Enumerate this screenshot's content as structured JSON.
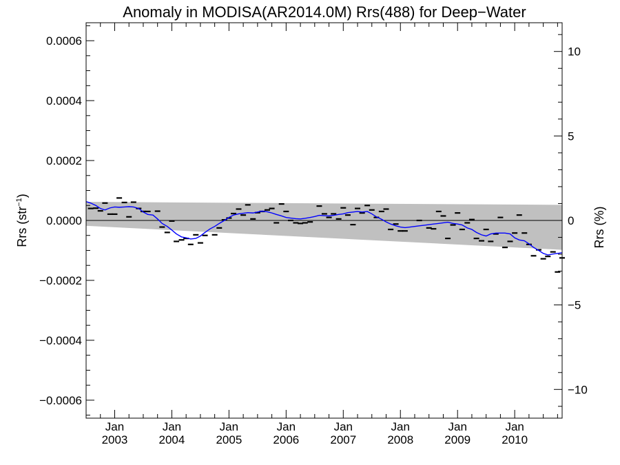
{
  "chart_data": {
    "type": "line",
    "title": "Anomaly in MODISA(AR2014.0M) Rrs(488) for Deep−Water",
    "ylabel_left_main": "Rrs (str",
    "ylabel_left_sup": "−1",
    "ylabel_left_close": ")",
    "ylabel_right": "Rrs (%)",
    "xlim": [
      2002.5,
      2010.83
    ],
    "ylim": [
      -0.00066,
      0.00066
    ],
    "ylim_right": [
      -11.7,
      11.7
    ],
    "grid": false,
    "y_ticks_left": [
      {
        "v": 0.0006,
        "label": "0.0006"
      },
      {
        "v": 0.0004,
        "label": "0.0004"
      },
      {
        "v": 0.0002,
        "label": "0.0002"
      },
      {
        "v": 0.0,
        "label": "0.0000"
      },
      {
        "v": -0.0002,
        "label": "−0.0002"
      },
      {
        "v": -0.0004,
        "label": "−0.0004"
      },
      {
        "v": -0.0006,
        "label": "−0.0006"
      }
    ],
    "y_ticks_right": [
      {
        "v": 10,
        "label": "10"
      },
      {
        "v": 5,
        "label": "5"
      },
      {
        "v": 0,
        "label": "0"
      },
      {
        "v": -5,
        "label": "−5"
      },
      {
        "v": -10,
        "label": "−10"
      }
    ],
    "x_ticks": [
      {
        "x": 2003.0,
        "month": "Jan",
        "year": "2003"
      },
      {
        "x": 2004.0,
        "month": "Jan",
        "year": "2004"
      },
      {
        "x": 2005.0,
        "month": "Jan",
        "year": "2005"
      },
      {
        "x": 2006.0,
        "month": "Jan",
        "year": "2006"
      },
      {
        "x": 2007.0,
        "month": "Jan",
        "year": "2007"
      },
      {
        "x": 2008.0,
        "month": "Jan",
        "year": "2008"
      },
      {
        "x": 2009.0,
        "month": "Jan",
        "year": "2009"
      },
      {
        "x": 2010.0,
        "month": "Jan",
        "year": "2010"
      }
    ],
    "reference_line_y": 0,
    "uncertainty_band": {
      "upper": [
        [
          2002.5,
          6.2e-05
        ],
        [
          2010.83,
          5.2e-05
        ]
      ],
      "lower": [
        [
          2002.5,
          -1.8e-05
        ],
        [
          2010.83,
          -9.8e-05
        ]
      ]
    },
    "monthly_anomalies": [
      [
        2002.58,
        4e-05
      ],
      [
        2002.67,
        4.1e-05
      ],
      [
        2002.75,
        3.2e-05
      ],
      [
        2002.83,
        5.8e-05
      ],
      [
        2002.92,
        2.1e-05
      ],
      [
        2003.0,
        2.1e-05
      ],
      [
        2003.08,
        7.5e-05
      ],
      [
        2003.17,
        6e-05
      ],
      [
        2003.25,
        1.2e-05
      ],
      [
        2003.33,
        6.1e-05
      ],
      [
        2003.42,
        4e-05
      ],
      [
        2003.5,
        3e-05
      ],
      [
        2003.58,
        3e-05
      ],
      [
        2003.75,
        3.1e-05
      ],
      [
        2003.83,
        -2.2e-05
      ],
      [
        2003.92,
        -4e-05
      ],
      [
        2004.0,
        -2e-06
      ],
      [
        2004.08,
        -7e-05
      ],
      [
        2004.17,
        -6.5e-05
      ],
      [
        2004.25,
        -6e-05
      ],
      [
        2004.33,
        -8e-05
      ],
      [
        2004.42,
        -4.8e-05
      ],
      [
        2004.5,
        -7.5e-05
      ],
      [
        2004.58,
        -5e-05
      ],
      [
        2004.75,
        -4.8e-05
      ],
      [
        2004.83,
        -2.5e-05
      ],
      [
        2004.92,
        2e-06
      ],
      [
        2005.0,
        8e-06
      ],
      [
        2005.08,
        2.3e-05
      ],
      [
        2005.17,
        3.8e-05
      ],
      [
        2005.25,
        1.8e-05
      ],
      [
        2005.33,
        5.2e-05
      ],
      [
        2005.42,
        5e-06
      ],
      [
        2005.5,
        2.6e-05
      ],
      [
        2005.58,
        3e-05
      ],
      [
        2005.67,
        3.5e-05
      ],
      [
        2005.75,
        4e-05
      ],
      [
        2005.83,
        -8e-06
      ],
      [
        2005.92,
        5.5e-05
      ],
      [
        2006.0,
        3e-05
      ],
      [
        2006.08,
        0.0
      ],
      [
        2006.17,
        -8e-06
      ],
      [
        2006.25,
        -1e-05
      ],
      [
        2006.33,
        -8e-06
      ],
      [
        2006.42,
        -5e-06
      ],
      [
        2006.58,
        4.8e-05
      ],
      [
        2006.67,
        2.2e-05
      ],
      [
        2006.75,
        1e-05
      ],
      [
        2006.83,
        2.2e-05
      ],
      [
        2006.92,
        5e-06
      ],
      [
        2007.0,
        4.2e-05
      ],
      [
        2007.08,
        1.8e-05
      ],
      [
        2007.17,
        -1.4e-05
      ],
      [
        2007.25,
        4e-05
      ],
      [
        2007.33,
        2.5e-05
      ],
      [
        2007.42,
        5e-05
      ],
      [
        2007.5,
        3.5e-05
      ],
      [
        2007.58,
        1e-05
      ],
      [
        2007.67,
        3e-05
      ],
      [
        2007.75,
        3.8e-05
      ],
      [
        2007.83,
        -3e-05
      ],
      [
        2007.92,
        -1.2e-05
      ],
      [
        2008.0,
        -3.5e-05
      ],
      [
        2008.08,
        -3.5e-05
      ],
      [
        2008.33,
        0.0
      ],
      [
        2008.5,
        -2.5e-05
      ],
      [
        2008.58,
        -2.8e-05
      ],
      [
        2008.67,
        3e-05
      ],
      [
        2008.75,
        1.5e-05
      ],
      [
        2008.83,
        -6e-05
      ],
      [
        2008.92,
        -1.5e-05
      ],
      [
        2009.0,
        2.5e-05
      ],
      [
        2009.08,
        -3e-05
      ],
      [
        2009.17,
        -8e-06
      ],
      [
        2009.25,
        3e-06
      ],
      [
        2009.33,
        -6e-05
      ],
      [
        2009.42,
        -6.8e-05
      ],
      [
        2009.5,
        -3e-05
      ],
      [
        2009.58,
        -7e-05
      ],
      [
        2009.67,
        -4.5e-05
      ],
      [
        2009.75,
        1e-05
      ],
      [
        2009.83,
        -9e-05
      ],
      [
        2009.92,
        -7e-05
      ],
      [
        2010.0,
        -4.2e-05
      ],
      [
        2010.08,
        1.8e-05
      ],
      [
        2010.17,
        -4.2e-05
      ],
      [
        2010.25,
        -8e-05
      ],
      [
        2010.33,
        -0.000118
      ],
      [
        2010.42,
        -9.8e-05
      ],
      [
        2010.5,
        -0.000128
      ],
      [
        2010.58,
        -0.00012
      ],
      [
        2010.67,
        -0.000105
      ],
      [
        2010.75,
        -0.000172
      ],
      [
        2010.83,
        -0.000125
      ]
    ],
    "smoothed_series": [
      [
        2002.5,
        6.3e-05
      ],
      [
        2002.58,
        5.8e-05
      ],
      [
        2002.67,
        5e-05
      ],
      [
        2002.75,
        4e-05
      ],
      [
        2002.83,
        3.5e-05
      ],
      [
        2002.92,
        4.2e-05
      ],
      [
        2003.0,
        4.5e-05
      ],
      [
        2003.08,
        4.4e-05
      ],
      [
        2003.17,
        4.5e-05
      ],
      [
        2003.25,
        4.6e-05
      ],
      [
        2003.33,
        4.5e-05
      ],
      [
        2003.42,
        4e-05
      ],
      [
        2003.5,
        2.8e-05
      ],
      [
        2003.58,
        2e-05
      ],
      [
        2003.67,
        1.8e-05
      ],
      [
        2003.75,
        5e-06
      ],
      [
        2003.83,
        -1e-05
      ],
      [
        2003.92,
        -2e-05
      ],
      [
        2004.0,
        -3.2e-05
      ],
      [
        2004.08,
        -4.5e-05
      ],
      [
        2004.17,
        -5.5e-05
      ],
      [
        2004.25,
        -5.8e-05
      ],
      [
        2004.33,
        -6.2e-05
      ],
      [
        2004.42,
        -6e-05
      ],
      [
        2004.5,
        -5.2e-05
      ],
      [
        2004.58,
        -4e-05
      ],
      [
        2004.67,
        -2.8e-05
      ],
      [
        2004.75,
        -2e-05
      ],
      [
        2004.83,
        -1e-05
      ],
      [
        2004.92,
        0.0
      ],
      [
        2005.0,
        1e-05
      ],
      [
        2005.08,
        1.8e-05
      ],
      [
        2005.17,
        2.2e-05
      ],
      [
        2005.25,
        2.4e-05
      ],
      [
        2005.33,
        2.6e-05
      ],
      [
        2005.42,
        2.5e-05
      ],
      [
        2005.5,
        2.8e-05
      ],
      [
        2005.58,
        3.1e-05
      ],
      [
        2005.67,
        2.9e-05
      ],
      [
        2005.75,
        2.5e-05
      ],
      [
        2005.83,
        2e-05
      ],
      [
        2005.92,
        1.5e-05
      ],
      [
        2006.0,
        1e-05
      ],
      [
        2006.08,
        8e-06
      ],
      [
        2006.17,
        6e-06
      ],
      [
        2006.25,
        5e-06
      ],
      [
        2006.33,
        7e-06
      ],
      [
        2006.42,
        1e-05
      ],
      [
        2006.5,
        1.3e-05
      ],
      [
        2006.58,
        1.7e-05
      ],
      [
        2006.67,
        1.6e-05
      ],
      [
        2006.75,
        1.5e-05
      ],
      [
        2006.83,
        1.7e-05
      ],
      [
        2006.92,
        2e-05
      ],
      [
        2007.0,
        2.2e-05
      ],
      [
        2007.08,
        2.6e-05
      ],
      [
        2007.17,
        2.8e-05
      ],
      [
        2007.25,
        3e-05
      ],
      [
        2007.33,
        2.8e-05
      ],
      [
        2007.42,
        3e-05
      ],
      [
        2007.5,
        2.2e-05
      ],
      [
        2007.58,
        1.2e-05
      ],
      [
        2007.67,
        4e-06
      ],
      [
        2007.75,
        -5e-06
      ],
      [
        2007.83,
        -1.2e-05
      ],
      [
        2007.92,
        -1.8e-05
      ],
      [
        2008.0,
        -2.2e-05
      ],
      [
        2008.08,
        -2.4e-05
      ],
      [
        2008.17,
        -2.2e-05
      ],
      [
        2008.25,
        -2e-05
      ],
      [
        2008.33,
        -1.8e-05
      ],
      [
        2008.42,
        -1.6e-05
      ],
      [
        2008.5,
        -1.4e-05
      ],
      [
        2008.58,
        -1.2e-05
      ],
      [
        2008.67,
        -1e-05
      ],
      [
        2008.75,
        -8e-06
      ],
      [
        2008.83,
        -6e-06
      ],
      [
        2008.92,
        -1e-05
      ],
      [
        2009.0,
        -1.2e-05
      ],
      [
        2009.08,
        -1.5e-05
      ],
      [
        2009.17,
        -2.5e-05
      ],
      [
        2009.25,
        -3e-05
      ],
      [
        2009.33,
        -4e-05
      ],
      [
        2009.42,
        -4.8e-05
      ],
      [
        2009.5,
        -5.2e-05
      ],
      [
        2009.58,
        -4.5e-05
      ],
      [
        2009.67,
        -4.2e-05
      ],
      [
        2009.75,
        -4.2e-05
      ],
      [
        2009.83,
        -4.2e-05
      ],
      [
        2009.92,
        -4.5e-05
      ],
      [
        2010.0,
        -5.8e-05
      ],
      [
        2010.08,
        -6.5e-05
      ],
      [
        2010.17,
        -6.8e-05
      ],
      [
        2010.25,
        -7.8e-05
      ],
      [
        2010.33,
        -9e-05
      ],
      [
        2010.42,
        -0.0001
      ],
      [
        2010.5,
        -0.00011
      ],
      [
        2010.58,
        -0.000115
      ],
      [
        2010.67,
        -0.000112
      ],
      [
        2010.75,
        -0.00011
      ],
      [
        2010.83,
        -0.000108
      ]
    ],
    "colors": {
      "band": "#c0c0c0",
      "smoothed": "#0000ff",
      "anomaly": "#000000",
      "axes": "#000000"
    }
  }
}
